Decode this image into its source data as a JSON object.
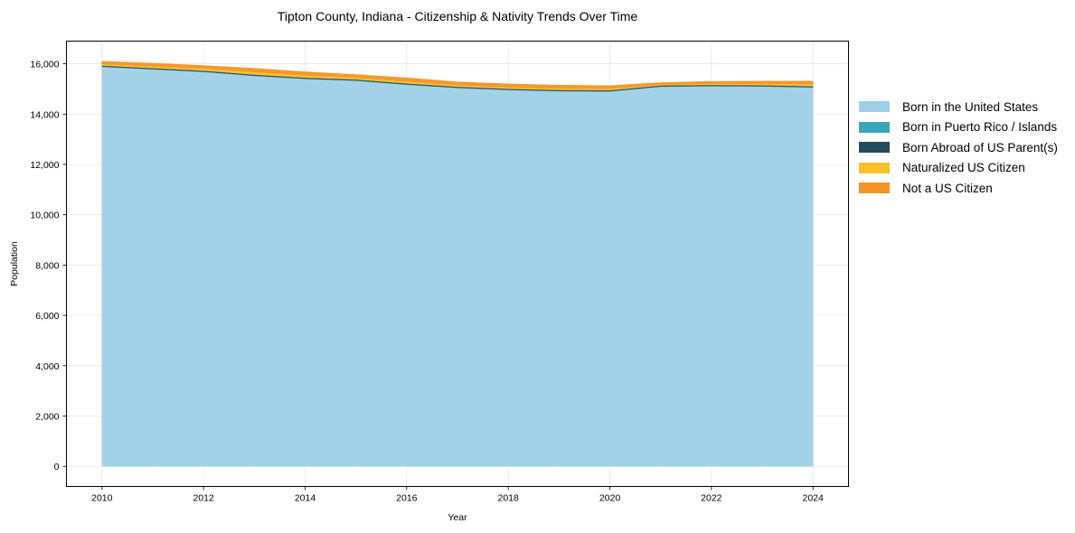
{
  "chart_data": {
    "type": "area",
    "stacked": true,
    "title": "Tipton County, Indiana - Citizenship & Nativity Trends Over Time",
    "xlabel": "Year",
    "ylabel": "Population",
    "x": [
      2010,
      2011,
      2012,
      2013,
      2014,
      2015,
      2016,
      2017,
      2018,
      2019,
      2020,
      2021,
      2022,
      2023,
      2024
    ],
    "xticks": [
      2010,
      2012,
      2014,
      2016,
      2018,
      2020,
      2022,
      2024
    ],
    "xtick_labels": [
      "2010",
      "2012",
      "2014",
      "2016",
      "2018",
      "2020",
      "2022",
      "2024"
    ],
    "yticks": [
      0,
      2000,
      4000,
      6000,
      8000,
      10000,
      12000,
      14000,
      16000
    ],
    "ytick_labels": [
      "0",
      "2,000",
      "4,000",
      "6,000",
      "8,000",
      "10,000",
      "12,000",
      "14,000",
      "16,000"
    ],
    "ylim": [
      -800,
      16900
    ],
    "xlim": [
      2009.3,
      2024.7
    ],
    "grid": true,
    "legend_position": "right",
    "series": [
      {
        "name": "Born in the United States",
        "color": "#9ecfe6",
        "values": [
          15880,
          15780,
          15680,
          15520,
          15400,
          15330,
          15170,
          15040,
          14960,
          14910,
          14900,
          15090,
          15110,
          15100,
          15060
        ]
      },
      {
        "name": "Born in Puerto Rico / Islands",
        "color": "#3aa6bc",
        "values": [
          10,
          10,
          10,
          10,
          10,
          10,
          10,
          10,
          10,
          10,
          10,
          10,
          10,
          10,
          10
        ]
      },
      {
        "name": "Born Abroad of US Parent(s)",
        "color": "#234b5c",
        "values": [
          40,
          40,
          40,
          40,
          40,
          40,
          40,
          40,
          40,
          40,
          40,
          40,
          40,
          40,
          40
        ]
      },
      {
        "name": "Naturalized US Citizen",
        "color": "#fbbf2c",
        "values": [
          60,
          70,
          80,
          100,
          90,
          70,
          80,
          60,
          60,
          60,
          60,
          40,
          50,
          60,
          80
        ]
      },
      {
        "name": "Not a US Citizen",
        "color": "#f39423",
        "values": [
          110,
          120,
          120,
          150,
          140,
          120,
          140,
          130,
          130,
          130,
          120,
          70,
          90,
          100,
          120
        ]
      }
    ]
  }
}
